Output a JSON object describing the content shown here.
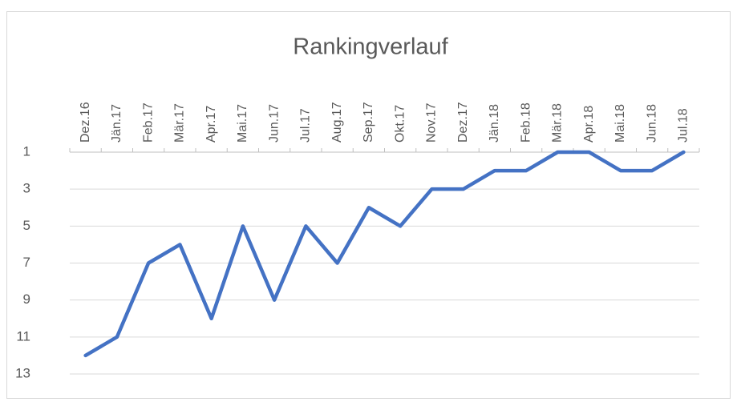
{
  "chart_data": {
    "type": "line",
    "title": "Rankingverlauf",
    "categories": [
      "Dez.16",
      "Jän.17",
      "Feb.17",
      "Mär.17",
      "Apr.17",
      "Mai.17",
      "Jun.17",
      "Jul.17",
      "Aug.17",
      "Sep.17",
      "Okt.17",
      "Nov.17",
      "Dez.17",
      "Jän.18",
      "Feb.18",
      "Mär.18",
      "Apr.18",
      "Mai.18",
      "Jun.18",
      "Jul.18"
    ],
    "values": [
      12,
      11,
      7,
      6,
      10,
      5,
      9,
      5,
      7,
      4,
      5,
      3,
      3,
      2,
      2,
      1,
      1,
      2,
      2,
      1
    ],
    "color": "#4472c4",
    "ylim": [
      1,
      13
    ],
    "yticks": [
      1,
      3,
      5,
      7,
      9,
      11,
      13
    ],
    "y_inverted": true,
    "grid": true
  }
}
